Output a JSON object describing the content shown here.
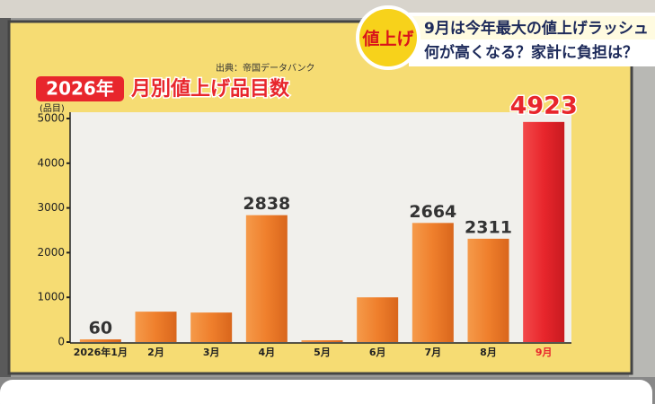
{
  "chart_data": {
    "type": "bar",
    "banner": {
      "badge": "値上げ",
      "line1": "9月は今年最大の値上げラッシュ",
      "line2": "何が高くなる？家計に負担は？"
    },
    "source": "出典：帝国データバンク",
    "title_year": "2026年",
    "title": "月別値上げ品目数",
    "y_unit": "(品目)",
    "categories": [
      "2026年1月",
      "2月",
      "3月",
      "4月",
      "5月",
      "6月",
      "7月",
      "8月",
      "9月"
    ],
    "values": [
      60,
      680,
      660,
      2838,
      40,
      1000,
      2664,
      2311,
      4923
    ],
    "value_labels": [
      "60",
      null,
      null,
      "2838",
      null,
      null,
      "2664",
      "2311",
      "4923"
    ],
    "colors": [
      "#ef7f2c",
      "#ef7f2c",
      "#ef7f2c",
      "#ef7f2c",
      "#ef7f2c",
      "#ef7f2c",
      "#ef7f2c",
      "#ef7f2c",
      "#e8262c"
    ],
    "ylim": [
      0,
      5000
    ],
    "yticks": [
      0,
      1000,
      2000,
      3000,
      4000,
      5000
    ]
  }
}
